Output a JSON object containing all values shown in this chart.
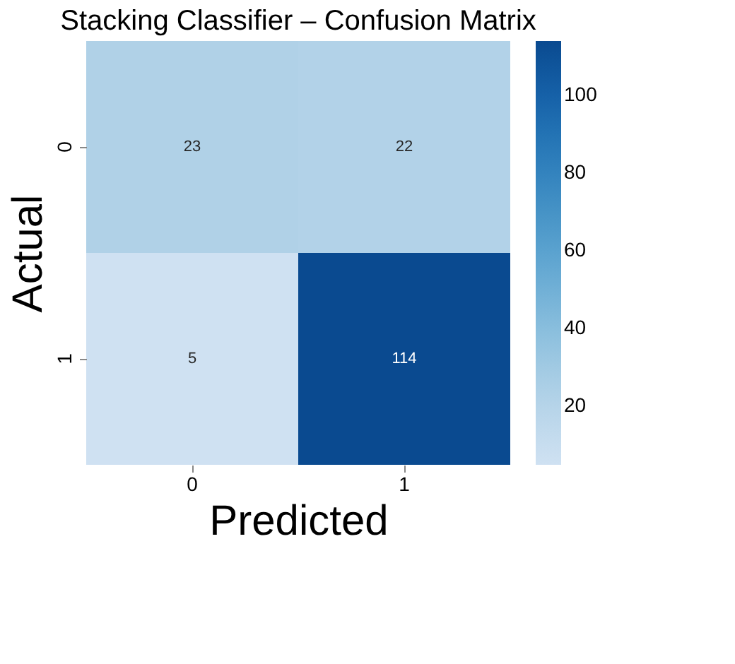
{
  "chart_data": {
    "type": "heatmap",
    "title": "Stacking Classifier – Confusion Matrix",
    "xlabel": "Predicted",
    "ylabel": "Actual",
    "categories": [
      "0",
      "1"
    ],
    "y_categories": [
      "0",
      "1"
    ],
    "cells": [
      [
        23,
        22
      ],
      [
        5,
        114
      ]
    ],
    "clim": [
      5,
      114
    ],
    "cticks": [
      20,
      40,
      60,
      80,
      100
    ],
    "data_labels": true
  }
}
